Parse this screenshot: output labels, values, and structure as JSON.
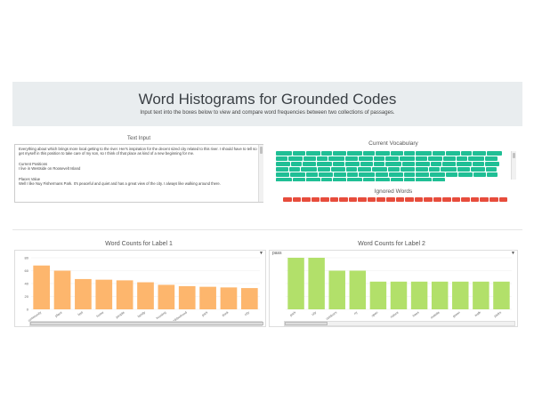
{
  "header": {
    "title": "Word Histograms for Grounded Codes",
    "subtitle": "Input text into the boxes below to view and compare word frequencies between two collections of passages."
  },
  "text_input": {
    "title": "Text Input",
    "lines": [
      "Everything about which brings more local getting to the river. Her's inspiration for the decent sized city related to this river. I should have to tell so about relations to what many labels",
      "get myself in this position to take care of my son, so I think of that place as kind of a new beginning for me.",
      "",
      "Current Positions",
      "I live in Westside on Roosevelt Island",
      "",
      "Places Value",
      "Well I like Nuy Fishermans Park. It's peaceful and quiet and has a great view of the city. I always like walking around there."
    ]
  },
  "vocabulary": {
    "title": "Current Vocabulary",
    "chip_count": 92,
    "color": "#1fbf95"
  },
  "ignored": {
    "title": "Ignored Words",
    "chip_count": 24,
    "color": "#e74c3c"
  },
  "charts": [
    {
      "title": "Word Counts for Label 1",
      "dropdown_value": "",
      "chart_data": {
        "type": "bar",
        "color": "#fdb66d",
        "categories": [
          "community",
          "place",
          "feel",
          "home",
          "people",
          "family",
          "housing",
          "neighborhood",
          "park",
          "think",
          "city"
        ],
        "values": [
          68,
          60,
          47,
          46,
          45,
          42,
          38,
          36,
          35,
          34,
          33
        ],
        "ylim": [
          0,
          80
        ],
        "yticks": [
          0,
          20,
          40,
          60,
          80
        ]
      }
    },
    {
      "title": "Word Counts for Label 2",
      "dropdown_value": "pass",
      "chart_data": {
        "type": "bar",
        "color": "#b2e06a",
        "categories": [
          "park",
          "city",
          "outdoors",
          "ny",
          "open",
          "nature",
          "trees",
          "outside",
          "green",
          "walk",
          "parks"
        ],
        "values": [
          80,
          80,
          60,
          60,
          43,
          43,
          43,
          43,
          43,
          43,
          43
        ],
        "ylim": [
          0,
          80
        ],
        "yticks": []
      }
    }
  ]
}
